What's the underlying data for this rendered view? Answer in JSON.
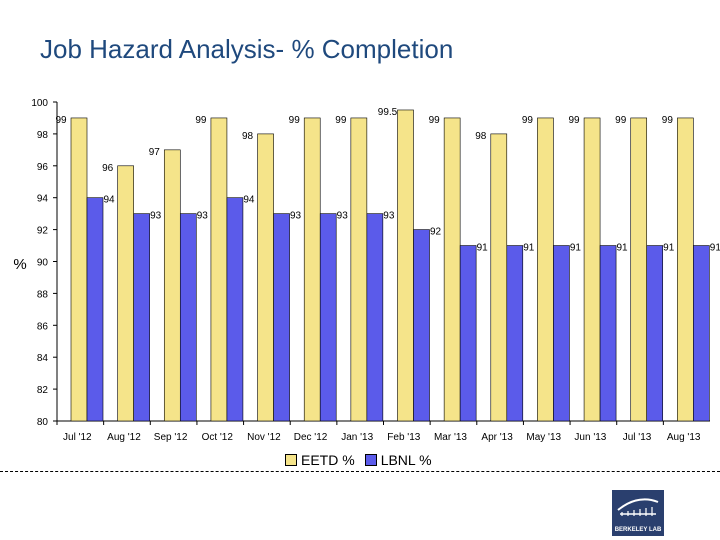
{
  "title": "Job Hazard Analysis- % Completion",
  "colors": {
    "eetd": "#f5e48a",
    "lbnl": "#5b5bea",
    "title": "#1f497d",
    "logo": "#2a3f6e"
  },
  "logo_text": "BERKELEY LAB",
  "chart_data": {
    "type": "bar",
    "title": "Job Hazard Analysis- % Completion",
    "xlabel": "",
    "ylabel": "%",
    "ylim": [
      80,
      100
    ],
    "yticks": [
      80,
      82,
      84,
      86,
      88,
      90,
      92,
      94,
      96,
      98,
      100
    ],
    "legend_position": "bottom",
    "grid": false,
    "categories": [
      "Jul '12",
      "Aug '12",
      "Sep '12",
      "Oct '12",
      "Nov '12",
      "Dec '12",
      "Jan '13",
      "Feb '13",
      "Mar '13",
      "Apr '13",
      "May '13",
      "Jun '13",
      "Jul '13",
      "Aug '13"
    ],
    "series": [
      {
        "name": "EETD %",
        "color": "#f5e48a",
        "values": [
          99,
          96,
          97,
          99,
          98,
          99,
          99,
          99.5,
          99,
          98,
          99,
          99,
          99,
          99
        ],
        "labels": [
          "99",
          "96",
          "97",
          "99",
          "98",
          "99",
          "99",
          "99.5",
          "99",
          "98",
          "99",
          "99",
          "99",
          "99"
        ]
      },
      {
        "name": "LBNL %",
        "color": "#5b5bea",
        "values": [
          94,
          93,
          93,
          94,
          93,
          93,
          93,
          92,
          91,
          91,
          91,
          91,
          91,
          91
        ],
        "labels": [
          "94",
          "93",
          "93",
          "94",
          "93",
          "93",
          "93",
          "92",
          "91",
          "91",
          "91",
          "91",
          "91",
          "91"
        ]
      }
    ]
  }
}
